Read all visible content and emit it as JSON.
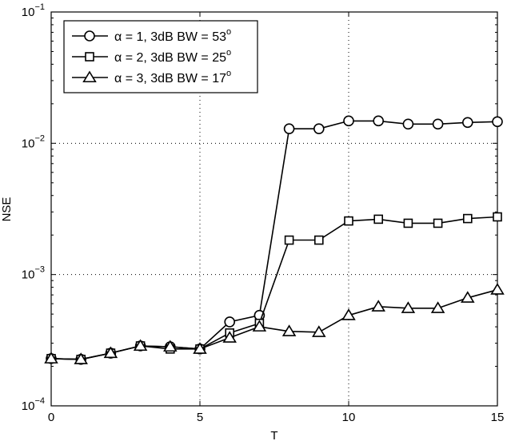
{
  "chart_data": {
    "type": "line",
    "title": "",
    "xlabel": "T",
    "ylabel": "NSE",
    "xlim": [
      0,
      15
    ],
    "ylim": [
      0.0001,
      0.1
    ],
    "yscale": "log",
    "grid": true,
    "legend_position": "upper left",
    "x_ticks": [
      0,
      5,
      10,
      15
    ],
    "x_tick_labels": [
      "0",
      "5",
      "10",
      "15"
    ],
    "y_ticks": [
      0.1,
      0.01,
      0.001,
      0.0001
    ],
    "y_tick_labels": [
      {
        "base": "10",
        "exp": "−1"
      },
      {
        "base": "10",
        "exp": "−2"
      },
      {
        "base": "10",
        "exp": "−3"
      },
      {
        "base": "10",
        "exp": "−4"
      }
    ],
    "x": [
      0,
      1,
      2,
      3,
      4,
      5,
      6,
      7,
      8,
      9,
      10,
      11,
      12,
      13,
      14,
      15
    ],
    "series": [
      {
        "name": "α = 1, 3dB BW = 53°",
        "label_main": "α = 1, 3dB BW = 53",
        "label_sup": "o",
        "marker": "circle",
        "color": "#000000",
        "values": [
          0.000229,
          0.000226,
          0.000252,
          0.000286,
          0.000282,
          0.000271,
          0.000436,
          0.000489,
          0.0129,
          0.0129,
          0.0148,
          0.0148,
          0.014,
          0.014,
          0.0144,
          0.0146
        ]
      },
      {
        "name": "α = 2, 3dB BW = 25°",
        "label_main": "α = 2, 3dB BW = 25",
        "label_sup": "o",
        "marker": "square",
        "color": "#000000",
        "values": [
          0.000229,
          0.000226,
          0.000252,
          0.000286,
          0.000271,
          0.000271,
          0.000359,
          0.000425,
          0.00183,
          0.00183,
          0.00256,
          0.00264,
          0.00246,
          0.00246,
          0.00267,
          0.00275
        ]
      },
      {
        "name": "α = 3, 3dB BW = 17°",
        "label_main": "α = 3, 3dB BW = 17",
        "label_sup": "o",
        "marker": "triangle",
        "color": "#000000",
        "values": [
          0.000229,
          0.000226,
          0.000252,
          0.000286,
          0.000282,
          0.000271,
          0.00033,
          0.000401,
          0.000369,
          0.000364,
          0.000489,
          0.00057,
          0.000554,
          0.000554,
          0.000665,
          0.000766
        ]
      }
    ]
  }
}
